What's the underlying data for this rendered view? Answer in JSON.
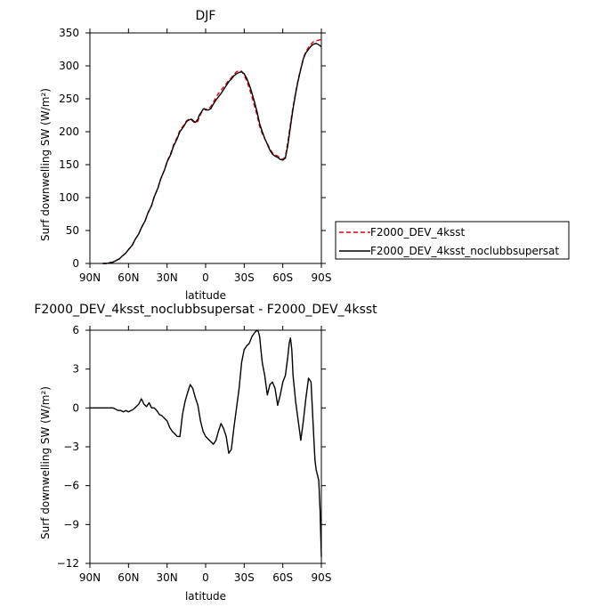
{
  "chart_data": [
    {
      "type": "line",
      "title": "DJF",
      "xlabel": "latitude",
      "ylabel": "Surf downwelling SW (W/m²)",
      "xlim": [
        90,
        -90
      ],
      "ylim": [
        0,
        350
      ],
      "x_ticks": [
        90,
        60,
        30,
        0,
        -30,
        -60,
        -90
      ],
      "x_tick_labels": [
        "90N",
        "60N",
        "30N",
        "0",
        "30S",
        "60S",
        "90S"
      ],
      "y_ticks": [
        0,
        50,
        100,
        150,
        200,
        250,
        300,
        350
      ],
      "y_tick_labels": [
        "0",
        "50",
        "100",
        "150",
        "200",
        "250",
        "300",
        "350"
      ],
      "legend": "outside-right",
      "series": [
        {
          "name": "F2000_DEV_4ksst",
          "color": "#e8000b",
          "dash": "dashed",
          "x": [
            80,
            77,
            75,
            72,
            70,
            67,
            65,
            62,
            60,
            57,
            55,
            52,
            50,
            47,
            45,
            42,
            40,
            37,
            35,
            32,
            30,
            27,
            25,
            22,
            20,
            17,
            15,
            13,
            11,
            10,
            8,
            6,
            5,
            3,
            2,
            1,
            0,
            -2,
            -4,
            -6,
            -8,
            -10,
            -12,
            -14,
            -16,
            -18,
            -20,
            -22,
            -24,
            -26,
            -28,
            -30,
            -32,
            -34,
            -36,
            -38,
            -40,
            -42,
            -44,
            -46,
            -48,
            -50,
            -52,
            -54,
            -56,
            -58,
            -60,
            -62,
            -64,
            -66,
            -68,
            -70,
            -72,
            -74,
            -76,
            -78,
            -80,
            -82,
            -84,
            -86,
            -88,
            -90
          ],
          "y": [
            0,
            0,
            1,
            2,
            4,
            7,
            11,
            16,
            21,
            28,
            36,
            45,
            54,
            65,
            76,
            88,
            101,
            115,
            128,
            142,
            155,
            168,
            180,
            192,
            202,
            210,
            216,
            219,
            218,
            216,
            213,
            216,
            222,
            230,
            234,
            235,
            234,
            235,
            238,
            245,
            252,
            258,
            263,
            268,
            273,
            278,
            282,
            287,
            291,
            293,
            292,
            286,
            277,
            266,
            253,
            239,
            225,
            208,
            197,
            189,
            182,
            174,
            168,
            165,
            163,
            160,
            158,
            162,
            185,
            212,
            238,
            260,
            280,
            296,
            312,
            322,
            328,
            333,
            337,
            338,
            339,
            340
          ]
        },
        {
          "name": "F2000_DEV_4ksst_noclubbsupersat",
          "color": "#000000",
          "dash": "solid",
          "x": [
            80,
            77,
            75,
            72,
            70,
            67,
            65,
            62,
            60,
            57,
            55,
            52,
            50,
            47,
            45,
            42,
            40,
            37,
            35,
            32,
            30,
            27,
            25,
            22,
            20,
            17,
            15,
            13,
            11,
            10,
            8,
            6,
            5,
            3,
            2,
            1,
            0,
            -2,
            -4,
            -6,
            -8,
            -10,
            -12,
            -14,
            -16,
            -18,
            -20,
            -22,
            -24,
            -26,
            -28,
            -30,
            -32,
            -34,
            -36,
            -38,
            -40,
            -42,
            -44,
            -46,
            -48,
            -50,
            -52,
            -54,
            -56,
            -58,
            -60,
            -62,
            -64,
            -66,
            -68,
            -70,
            -72,
            -74,
            -76,
            -78,
            -80,
            -82,
            -84,
            -86,
            -88,
            -90
          ],
          "y": [
            0,
            0,
            1,
            2,
            4,
            7,
            11,
            16,
            21,
            28,
            36,
            45,
            54,
            65,
            76,
            88,
            101,
            115,
            128,
            142,
            154,
            166,
            178,
            190,
            200,
            208,
            215,
            218,
            219,
            217,
            214,
            219,
            225,
            231,
            234,
            235,
            233,
            233,
            235,
            242,
            248,
            253,
            258,
            264,
            270,
            276,
            280,
            285,
            288,
            290,
            291,
            288,
            281,
            271,
            259,
            245,
            230,
            212,
            200,
            190,
            181,
            172,
            166,
            163,
            161,
            158,
            157,
            160,
            180,
            208,
            235,
            258,
            278,
            295,
            311,
            320,
            325,
            330,
            333,
            334,
            332,
            329
          ]
        }
      ]
    },
    {
      "type": "line",
      "title": "F2000_DEV_4ksst_noclubbsupersat - F2000_DEV_4ksst",
      "xlabel": "latitude",
      "ylabel": "Surf downwelling SW (W/m²)",
      "xlim": [
        90,
        -90
      ],
      "ylim": [
        -12,
        6
      ],
      "x_ticks": [
        90,
        60,
        30,
        0,
        -30,
        -60,
        -90
      ],
      "x_tick_labels": [
        "90N",
        "60N",
        "30N",
        "0",
        "30S",
        "60S",
        "90S"
      ],
      "y_ticks": [
        -12,
        -9,
        -6,
        -3,
        0,
        3,
        6
      ],
      "y_tick_labels": [
        "−12",
        "−9",
        "−6",
        "−3",
        "0",
        "3",
        "6"
      ],
      "series": [
        {
          "color": "#000000",
          "x": [
            90,
            85,
            80,
            75,
            72,
            70,
            68,
            66,
            64,
            62,
            60,
            58,
            56,
            54,
            52,
            50,
            48,
            46,
            44,
            42,
            40,
            38,
            36,
            34,
            32,
            30,
            28,
            26,
            24,
            22,
            20,
            18,
            16,
            14,
            12,
            10,
            8,
            6,
            4,
            2,
            0,
            -2,
            -4,
            -6,
            -8,
            -10,
            -12,
            -14,
            -16,
            -18,
            -20,
            -22,
            -24,
            -26,
            -28,
            -30,
            -32,
            -34,
            -36,
            -38,
            -40,
            -41,
            -42,
            -43,
            -44,
            -46,
            -48,
            -50,
            -52,
            -54,
            -56,
            -58,
            -60,
            -62,
            -64,
            -65,
            -66,
            -67,
            -68,
            -70,
            -72,
            -74,
            -76,
            -78,
            -80,
            -82,
            -84,
            -85,
            -86,
            -87,
            -88,
            -89,
            -90
          ],
          "y": [
            0,
            0,
            0,
            0,
            0,
            -0.1,
            -0.2,
            -0.2,
            -0.3,
            -0.2,
            -0.3,
            -0.2,
            -0.1,
            0.1,
            0.3,
            0.7,
            0.3,
            0.1,
            0.4,
            0,
            0,
            -0.2,
            -0.5,
            -0.6,
            -0.8,
            -1.0,
            -1.5,
            -1.8,
            -2.0,
            -2.2,
            -2.2,
            -0.5,
            0.5,
            1.2,
            1.8,
            1.5,
            0.8,
            0.2,
            -1.0,
            -1.8,
            -2.2,
            -2.4,
            -2.6,
            -2.8,
            -2.5,
            -1.8,
            -1.2,
            -1.6,
            -2.2,
            -3.5,
            -3.2,
            -1.5,
            0,
            1.5,
            3.5,
            4.5,
            4.8,
            5.0,
            5.5,
            5.8,
            6.0,
            5.9,
            5.5,
            4.5,
            3.5,
            2.5,
            1.0,
            1.8,
            2.0,
            1.5,
            0.2,
            1.0,
            2.0,
            2.5,
            4.0,
            5.0,
            5.4,
            4.5,
            2.5,
            0.5,
            -1.0,
            -2.5,
            -1.0,
            0.8,
            2.3,
            2.0,
            -2.0,
            -4.0,
            -4.8,
            -5.2,
            -5.6,
            -8.0,
            -11.5
          ]
        }
      ]
    }
  ]
}
